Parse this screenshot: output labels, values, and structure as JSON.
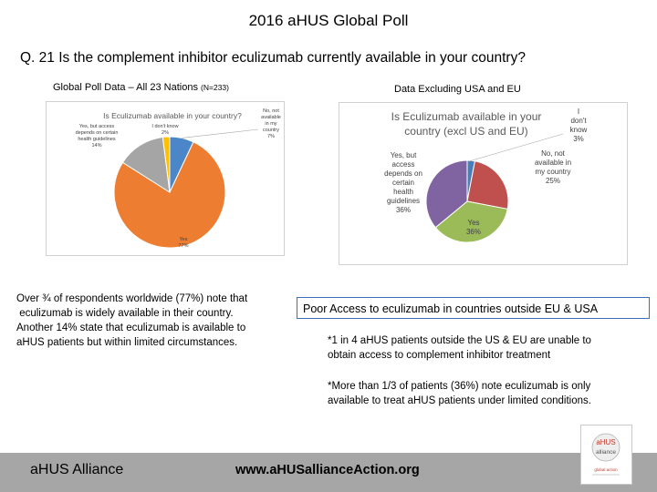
{
  "slide": {
    "title": "2016 aHUS Global Poll",
    "question": "Q. 21   Is the complement inhibitor eculizumab currently available in your country?",
    "left_heading": "Global Poll Data – All 23 Nations ",
    "left_heading_n": "(N=233)",
    "right_heading": "Data Excluding USA  and EU",
    "summary_lines": [
      "Over ¾ of respondents worldwide (77%) note that",
      " eculizumab is widely available in their country.",
      "Another 14% state that eculizumab is available to",
      "aHUS patients but within limited circumstances."
    ],
    "poor_access_box": "Poor Access to eculizumab in countries outside EU & USA",
    "note1_lines": [
      "*1 in 4 aHUS patients outside the US & EU are unable to",
      "obtain access to complement inhibitor treatment"
    ],
    "note2_lines": [
      "*More than 1/3 of patients (36%) note eculizumab is only",
      "available to treat aHUS patients under limited conditions."
    ],
    "footer_left": "aHUS Alliance",
    "footer_url": "www.aHUSallianceAction.org",
    "logo_text": [
      "aHUS",
      "alliance",
      "global action"
    ]
  },
  "chart_data": [
    {
      "type": "pie",
      "title": "Is Eculizumab available in your country?",
      "slices": [
        {
          "label_lines": [
            "No, not",
            "available",
            "in my",
            "country",
            "7%"
          ],
          "value": 7,
          "color": "#4a86c8"
        },
        {
          "label_lines": [
            "Yes",
            "77%"
          ],
          "value": 77,
          "color": "#ed7d31"
        },
        {
          "label_lines": [
            "Yes, but access",
            "depends on certain",
            "health guidelines",
            "14%"
          ],
          "value": 14,
          "color": "#a5a5a5"
        },
        {
          "label_lines": [
            "I don't know",
            "2%"
          ],
          "value": 2,
          "color": "#ffc000"
        }
      ]
    },
    {
      "type": "pie",
      "title_lines": [
        "Is Eculizumab available in your",
        "country (excl US and EU)"
      ],
      "slices": [
        {
          "label_lines": [
            "I",
            "don't",
            "know",
            "3%"
          ],
          "value": 3,
          "color": "#4a7ebb"
        },
        {
          "label_lines": [
            "No, not",
            "available in",
            "my country",
            "25%"
          ],
          "value": 25,
          "color": "#c0504d"
        },
        {
          "label_lines": [
            "Yes",
            "36%"
          ],
          "value": 36,
          "color": "#9bbb59"
        },
        {
          "label_lines": [
            "Yes, but",
            "access",
            "depends on",
            "certain",
            "health",
            "guidelines",
            "36%"
          ],
          "value": 36,
          "color": "#8064a2"
        }
      ]
    }
  ]
}
